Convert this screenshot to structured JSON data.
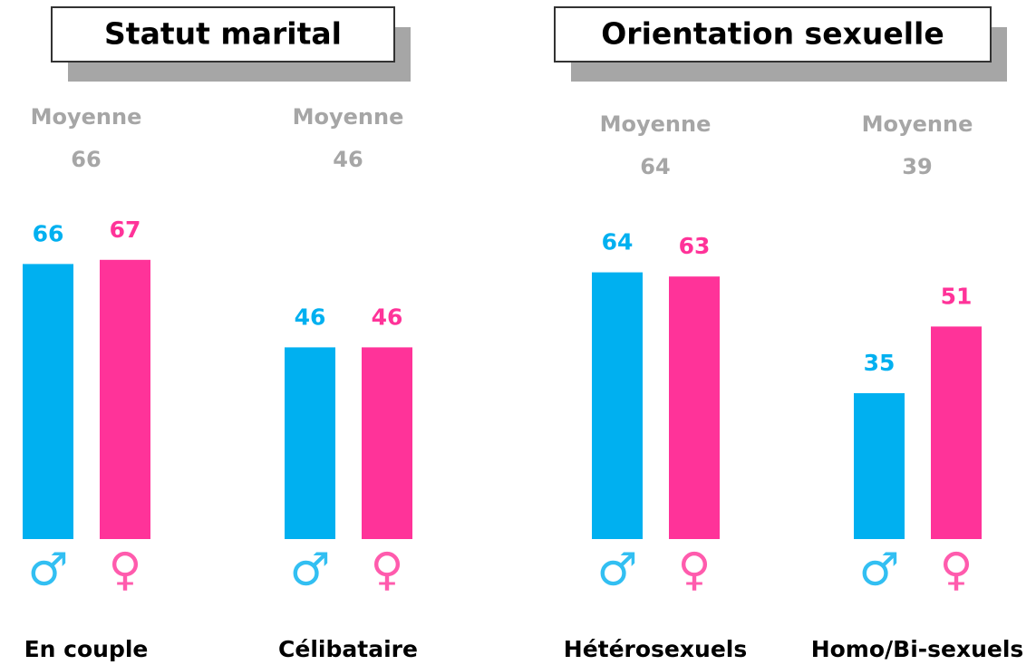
{
  "chart_data": [
    {
      "type": "bar",
      "title": "Statut marital",
      "average_label": "Moyenne",
      "categories": [
        "En couple",
        "Célibataire"
      ],
      "averages": [
        66,
        46
      ],
      "series": [
        {
          "name": "♂",
          "color": "#00b0f0",
          "values": [
            66,
            46
          ]
        },
        {
          "name": "♀",
          "color": "#ff3399",
          "values": [
            67,
            46
          ]
        }
      ]
    },
    {
      "type": "bar",
      "title": "Orientation sexuelle",
      "average_label": "Moyenne",
      "categories": [
        "Hétérosexuels",
        "Homo/Bi-sexuels"
      ],
      "averages": [
        64,
        39
      ],
      "series": [
        {
          "name": "♂",
          "color": "#00b0f0",
          "values": [
            64,
            35
          ]
        },
        {
          "name": "♀",
          "color": "#ff3399",
          "values": [
            63,
            51
          ]
        }
      ]
    }
  ]
}
